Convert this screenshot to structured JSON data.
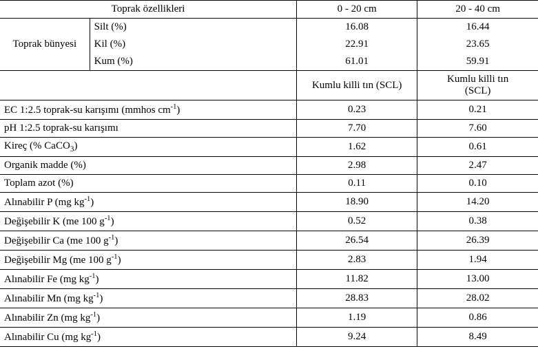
{
  "header": {
    "properties_label": "Toprak özellikleri",
    "depth1": "0 - 20 cm",
    "depth2": "20 - 40 cm"
  },
  "texture": {
    "group_label": "Toprak bünyesi",
    "rows": [
      {
        "label": "Silt (%)",
        "v1": "16.08",
        "v2": "16.44"
      },
      {
        "label": "Kil (%)",
        "v1": "22.91",
        "v2": "23.65"
      },
      {
        "label": "Kum (%)",
        "v1": "61.01",
        "v2": "59.91"
      }
    ]
  },
  "classification": {
    "v1": "Kumlu killi tın (SCL)",
    "v2_line1": "Kumlu killi tın",
    "v2_line2": "(SCL)"
  },
  "rows": [
    {
      "label_pre": "EC 1:2.5 toprak-su karışımı (mmhos cm",
      "label_sup": "-1",
      "label_post": ")",
      "v1": "0.23",
      "v2": "0.21"
    },
    {
      "label_pre": "pH 1:2.5 toprak-su karışımı",
      "label_sup": "",
      "label_post": "",
      "v1": "7.70",
      "v2": "7.60"
    },
    {
      "label_pre": "Kireç (% CaCO",
      "label_sub": "3",
      "label_post": ")",
      "v1": "1.62",
      "v2": "0.61"
    },
    {
      "label_pre": "Organik madde (%)",
      "v1": "2.98",
      "v2": "2.47"
    },
    {
      "label_pre": "Toplam azot (%)",
      "v1": "0.11",
      "v2": "0.10"
    },
    {
      "label_pre": "Alınabilir P (mg kg",
      "label_sup": "-1",
      "label_post": ")",
      "v1": "18.90",
      "v2": "14.20"
    },
    {
      "label_pre": "Değişebilir K (me 100 g",
      "label_sup": "-1",
      "label_post": ")",
      "v1": "0.52",
      "v2": "0.38"
    },
    {
      "label_pre": "Değişebilir Ca (me 100 g",
      "label_sup": "-1",
      "label_post": ")",
      "v1": "26.54",
      "v2": "26.39"
    },
    {
      "label_pre": "Değişebilir Mg (me 100 g",
      "label_sup": "-1",
      "label_post": ")",
      "v1": "2.83",
      "v2": "1.94"
    },
    {
      "label_pre": "Alınabilir Fe (mg kg",
      "label_sup": "-1",
      "label_post": ")",
      "v1": "11.82",
      "v2": "13.00"
    },
    {
      "label_pre": "Alınabilir Mn (mg kg",
      "label_sup": "-1",
      "label_post": ")",
      "v1": "28.83",
      "v2": "28.02"
    },
    {
      "label_pre": "Alınabilir Zn (mg kg",
      "label_sup": "-1",
      "label_post": ")",
      "v1": "1.19",
      "v2": "0.86"
    },
    {
      "label_pre": "Alınabilir Cu (mg kg",
      "label_sup": "-1",
      "label_post": ")",
      "v1": "9.24",
      "v2": "8.49"
    }
  ]
}
